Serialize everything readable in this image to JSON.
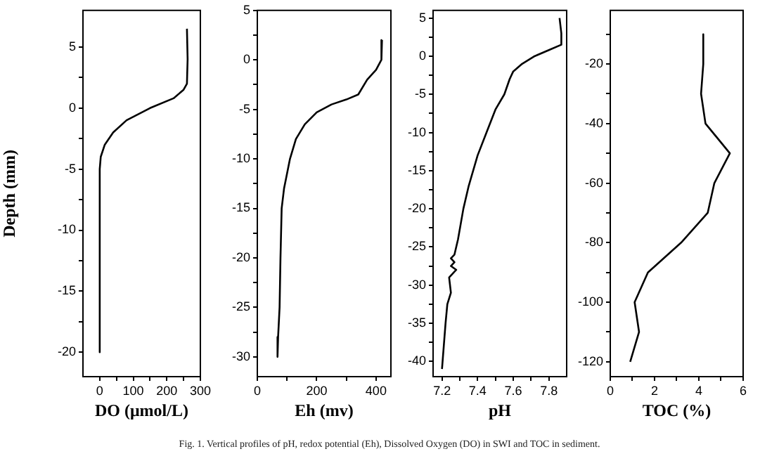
{
  "chart_data": [
    {
      "type": "line",
      "xlabel": "DO (μmol/L)",
      "ylabel": "Depth (mm)",
      "xlim": [
        -50,
        300
      ],
      "ylim": [
        -22,
        8
      ],
      "xticks": [
        0,
        {
          "value": 50,
          "label": null
        },
        100,
        {
          "value": 150,
          "label": null
        },
        200,
        {
          "value": 250,
          "label": null
        },
        300
      ],
      "yticks": [
        -20,
        {
          "value": -17.5,
          "label": null
        },
        -15,
        {
          "value": -12.5,
          "label": null
        },
        -10,
        {
          "value": -7.5,
          "label": null
        },
        -5,
        {
          "value": -2.5,
          "label": null
        },
        0,
        {
          "value": 2.5,
          "label": null
        },
        5
      ],
      "series": [
        {
          "color": "#000000",
          "x": [
            260,
            262,
            260,
            250,
            220,
            150,
            80,
            40,
            15,
            3,
            0,
            0
          ],
          "values": [
            6.5,
            4,
            2,
            1.5,
            0.8,
            0,
            -1,
            -2,
            -3,
            -4,
            -5,
            -20
          ]
        }
      ],
      "annotations": [
        "Fig. 1. Vertical profiles of pH, redox potential (Eh), Dissolved Oxygen (DO) in SWI and TOC in sediment."
      ]
    },
    {
      "type": "line",
      "xlabel": "Eh (mv)",
      "xlim": [
        0,
        450
      ],
      "ylim": [
        -32,
        5
      ],
      "xticks": [
        0,
        {
          "value": 100,
          "label": null
        },
        200,
        {
          "value": 300,
          "label": null
        },
        400
      ],
      "yticks": [
        -30,
        {
          "value": -27.5,
          "label": null
        },
        -25,
        {
          "value": -22.5,
          "label": null
        },
        -20,
        {
          "value": -17.5,
          "label": null
        },
        -15,
        {
          "value": -12.5,
          "label": null
        },
        -10,
        {
          "value": -7.5,
          "label": null
        },
        -5,
        {
          "value": -2.5,
          "label": null
        },
        0,
        {
          "value": 2.5,
          "label": null
        },
        5
      ],
      "series": [
        {
          "color": "#000000",
          "x": [
            420,
            418,
            400,
            370,
            340,
            300,
            250,
            200,
            160,
            130,
            110,
            90,
            82,
            78,
            75,
            70,
            68
          ],
          "values": [
            2,
            0,
            -1,
            -2,
            -3.5,
            -4,
            -4.5,
            -5.3,
            -6.5,
            -8,
            -10,
            -13,
            -15,
            -20,
            -25,
            -28,
            -30
          ]
        }
      ]
    },
    {
      "type": "line",
      "xlabel": "pH",
      "xlim": [
        7.15,
        7.9
      ],
      "ylim": [
        -42,
        6
      ],
      "xticks": [
        7.2,
        {
          "value": 7.3,
          "label": null
        },
        7.4,
        {
          "value": 7.5,
          "label": null
        },
        7.6,
        {
          "value": 7.7,
          "label": null
        },
        7.8
      ],
      "yticks": [
        -40,
        {
          "value": -37.5,
          "label": null
        },
        -35,
        {
          "value": -32.5,
          "label": null
        },
        -30,
        {
          "value": -27.5,
          "label": null
        },
        -25,
        {
          "value": -22.5,
          "label": null
        },
        -20,
        {
          "value": -17.5,
          "label": null
        },
        -15,
        {
          "value": -12.5,
          "label": null
        },
        -10,
        {
          "value": -7.5,
          "label": null
        },
        -5,
        {
          "value": -2.5,
          "label": null
        },
        0,
        {
          "value": 2.5,
          "label": null
        },
        5
      ],
      "series": [
        {
          "color": "#000000",
          "x": [
            7.86,
            7.87,
            7.87,
            7.8,
            7.72,
            7.65,
            7.6,
            7.58,
            7.55,
            7.5,
            7.45,
            7.4,
            7.35,
            7.32,
            7.29,
            7.27,
            7.25,
            7.27,
            7.25,
            7.28,
            7.24,
            7.25,
            7.23,
            7.22,
            7.21,
            7.2
          ],
          "values": [
            5,
            3,
            1.5,
            0.8,
            0,
            -1,
            -2,
            -3,
            -5,
            -7,
            -10,
            -13,
            -17,
            -20,
            -24,
            -26,
            -26.5,
            -27,
            -27.5,
            -28,
            -29,
            -31,
            -32.5,
            -35,
            -38,
            -41
          ]
        }
      ]
    },
    {
      "type": "line",
      "xlabel": "TOC (%)",
      "xlim": [
        0,
        6
      ],
      "ylim": [
        -125,
        -2
      ],
      "xticks": [
        0,
        {
          "value": 1,
          "label": null
        },
        2,
        {
          "value": 3,
          "label": null
        },
        4,
        {
          "value": 5,
          "label": null
        },
        6
      ],
      "yticks": [
        -120,
        {
          "value": -110,
          "label": null
        },
        -100,
        {
          "value": -90,
          "label": null
        },
        -80,
        {
          "value": -70,
          "label": null
        },
        -60,
        {
          "value": -50,
          "label": null
        },
        -40,
        {
          "value": -30,
          "label": null
        },
        -20,
        {
          "value": -10,
          "label": null
        }
      ],
      "series": [
        {
          "color": "#000000",
          "x": [
            4.2,
            4.2,
            4.1,
            4.3,
            5.4,
            4.7,
            4.4,
            3.2,
            1.7,
            1.1,
            1.3,
            0.9
          ],
          "values": [
            -10,
            -20,
            -30,
            -40,
            -50,
            -60,
            -70,
            -80,
            -90,
            -100,
            -110,
            -120
          ]
        }
      ]
    }
  ]
}
